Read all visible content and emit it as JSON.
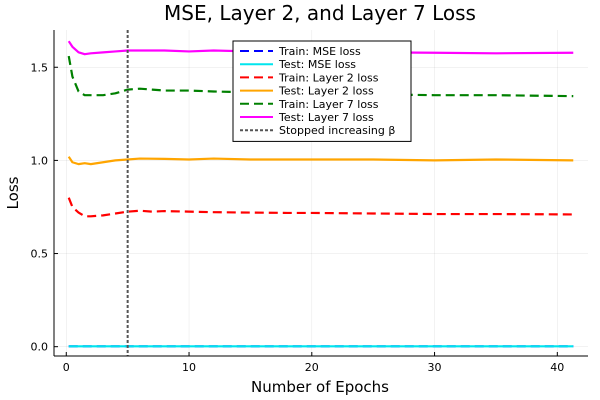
{
  "chart_data": {
    "type": "line",
    "title": "MSE, Layer 2, and Layer 7 Loss",
    "xlabel": "Number of Epochs",
    "ylabel": "Loss",
    "xlim": [
      -1,
      42.5
    ],
    "ylim": [
      -0.05,
      1.7
    ],
    "x_ticks": [
      0,
      10,
      20,
      30,
      40
    ],
    "y_ticks": [
      0.0,
      0.5,
      1.0,
      1.5
    ],
    "x_tick_labels": [
      "0",
      "10",
      "20",
      "30",
      "40"
    ],
    "y_tick_labels": [
      "0.0",
      "0.5",
      "1.0",
      "1.5"
    ],
    "grid": true,
    "legend_position": "top-right",
    "vline": {
      "x": 5,
      "label": "Stopped increasing β",
      "color": "#555555"
    },
    "series": [
      {
        "name": "Train: MSE loss",
        "color": "#0000ff",
        "dash": true,
        "x": [
          0.2,
          1,
          2,
          3,
          5,
          10,
          20,
          30,
          41.3
        ],
        "y": [
          0.002,
          0.002,
          0.002,
          0.002,
          0.002,
          0.002,
          0.002,
          0.002,
          0.002
        ]
      },
      {
        "name": "Test: MSE loss",
        "color": "#00e5ee",
        "dash": false,
        "x": [
          0.2,
          1,
          2,
          3,
          5,
          10,
          20,
          30,
          41.3
        ],
        "y": [
          0.002,
          0.002,
          0.002,
          0.002,
          0.002,
          0.002,
          0.002,
          0.002,
          0.002
        ]
      },
      {
        "name": "Train: Layer 2 loss",
        "color": "#ff0000",
        "dash": true,
        "x": [
          0.2,
          0.5,
          1,
          1.5,
          2,
          3,
          4,
          5,
          6,
          7,
          8,
          10,
          12,
          15,
          18,
          20,
          25,
          30,
          35,
          41.3
        ],
        "y": [
          0.8,
          0.75,
          0.72,
          0.7,
          0.7,
          0.705,
          0.715,
          0.725,
          0.73,
          0.725,
          0.728,
          0.725,
          0.722,
          0.72,
          0.718,
          0.718,
          0.715,
          0.712,
          0.712,
          0.71
        ]
      },
      {
        "name": "Test: Layer 2 loss",
        "color": "#ffa500",
        "dash": false,
        "x": [
          0.2,
          0.5,
          1,
          1.5,
          2,
          3,
          4,
          5,
          6,
          8,
          10,
          12,
          15,
          20,
          25,
          30,
          35,
          41.3
        ],
        "y": [
          1.02,
          0.99,
          0.98,
          0.985,
          0.98,
          0.99,
          1.0,
          1.005,
          1.01,
          1.008,
          1.005,
          1.01,
          1.005,
          1.005,
          1.005,
          1.0,
          1.005,
          1.0
        ]
      },
      {
        "name": "Train: Layer 7 loss",
        "color": "#008000",
        "dash": true,
        "x": [
          0.2,
          0.5,
          1,
          1.5,
          2,
          3,
          4,
          5,
          6,
          7,
          8,
          10,
          12,
          15,
          20,
          25,
          30,
          35,
          41.3
        ],
        "y": [
          1.56,
          1.45,
          1.37,
          1.35,
          1.35,
          1.35,
          1.36,
          1.38,
          1.385,
          1.38,
          1.375,
          1.375,
          1.37,
          1.365,
          1.36,
          1.355,
          1.35,
          1.35,
          1.345
        ]
      },
      {
        "name": "Test: Layer 7 loss",
        "color": "#ff00ff",
        "dash": false,
        "x": [
          0.2,
          0.5,
          1,
          1.5,
          2,
          3,
          4,
          5,
          6,
          7,
          8,
          10,
          12,
          15,
          20,
          25,
          30,
          35,
          41.3
        ],
        "y": [
          1.64,
          1.61,
          1.58,
          1.57,
          1.575,
          1.58,
          1.585,
          1.59,
          1.59,
          1.59,
          1.59,
          1.585,
          1.59,
          1.585,
          1.58,
          1.58,
          1.578,
          1.575,
          1.578
        ]
      }
    ]
  }
}
